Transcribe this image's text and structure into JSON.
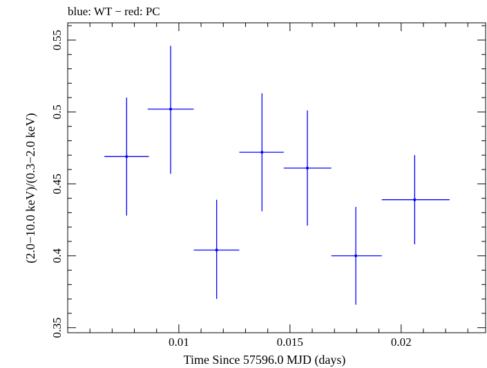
{
  "chart_data": {
    "type": "scatter",
    "title": "blue: WT − red: PC",
    "xlabel": "Time Since 57596.0 MJD (days)",
    "ylabel": "(2.0−10.0 keV)/(0.3−2.0 keV)",
    "xlim": [
      0.005,
      0.0238
    ],
    "ylim": [
      0.3465,
      0.562
    ],
    "x_ticks": [
      0.01,
      0.015,
      0.02
    ],
    "x_tick_labels": [
      "0.01",
      "0.015",
      "0.02"
    ],
    "y_ticks": [
      0.35,
      0.4,
      0.45,
      0.5,
      0.55
    ],
    "y_tick_labels": [
      "0.35",
      "0.4",
      "0.45",
      "0.5",
      "0.55"
    ],
    "grid": false,
    "series": [
      {
        "name": "WT",
        "color": "#0000ff",
        "points": [
          {
            "x": 0.00765,
            "xerr_low": 0.00665,
            "xerr_high": 0.00865,
            "y": 0.469,
            "yerr_low": 0.428,
            "yerr_high": 0.51
          },
          {
            "x": 0.00963,
            "xerr_low": 0.0086,
            "xerr_high": 0.01067,
            "y": 0.502,
            "yerr_low": 0.457,
            "yerr_high": 0.546
          },
          {
            "x": 0.0117,
            "xerr_low": 0.01067,
            "xerr_high": 0.01272,
            "y": 0.404,
            "yerr_low": 0.37,
            "yerr_high": 0.439
          },
          {
            "x": 0.01374,
            "xerr_low": 0.01272,
            "xerr_high": 0.01472,
            "y": 0.472,
            "yerr_low": 0.431,
            "yerr_high": 0.513
          },
          {
            "x": 0.01578,
            "xerr_low": 0.01472,
            "xerr_high": 0.01686,
            "y": 0.461,
            "yerr_low": 0.421,
            "yerr_high": 0.501
          },
          {
            "x": 0.01796,
            "xerr_low": 0.01686,
            "xerr_high": 0.01913,
            "y": 0.4,
            "yerr_low": 0.366,
            "yerr_high": 0.434
          },
          {
            "x": 0.02061,
            "xerr_low": 0.01913,
            "xerr_high": 0.02218,
            "y": 0.439,
            "yerr_low": 0.408,
            "yerr_high": 0.47
          }
        ]
      }
    ]
  }
}
